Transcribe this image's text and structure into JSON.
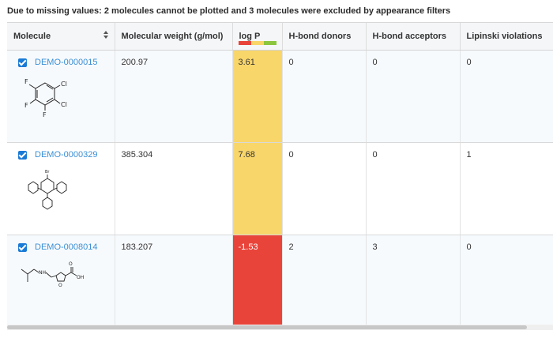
{
  "notice": "Due to missing values: 2 molecules cannot be plotted and 3 molecules were excluded by appearance filters",
  "columns": {
    "molecule": "Molecule",
    "weight": "Molecular weight (g/mol)",
    "logp": "log P",
    "donors": "H-bond donors",
    "acceptors": "H-bond acceptors",
    "lipinski": "Lipinski violations"
  },
  "logp_legend_colors": [
    "#e9443a",
    "#f9d66a",
    "#8cc63f"
  ],
  "rows": [
    {
      "id": "DEMO-0000015",
      "weight": "200.97",
      "logp": "3.61",
      "logp_color": "#f9d66a",
      "donors": "0",
      "acceptors": "0",
      "lipinski": "0",
      "checked": true,
      "atoms": [
        "F",
        "F",
        "F",
        "Cl",
        "Cl"
      ]
    },
    {
      "id": "DEMO-0000329",
      "weight": "385.304",
      "logp": "7.68",
      "logp_color": "#f9d66a",
      "donors": "0",
      "acceptors": "0",
      "lipinski": "1",
      "checked": true,
      "atoms": [
        "Br"
      ]
    },
    {
      "id": "DEMO-0008014",
      "weight": "183.207",
      "logp": "-1.53",
      "logp_color": "#e9443a",
      "donors": "2",
      "acceptors": "3",
      "lipinski": "0",
      "checked": true,
      "atoms": [
        "NH",
        "O",
        "O",
        "OH"
      ]
    }
  ]
}
